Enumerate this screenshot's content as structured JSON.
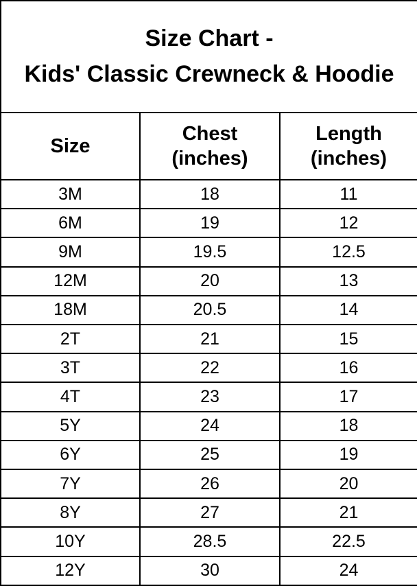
{
  "title": "Size Chart -\nKids' Classic Crewneck & Hoodie",
  "colors": {
    "background": "#ffffff",
    "border": "#000000",
    "text": "#000000"
  },
  "table": {
    "columns": [
      {
        "key": "size",
        "label": "Size"
      },
      {
        "key": "chest",
        "label": "Chest\n(inches)"
      },
      {
        "key": "length",
        "label": "Length\n(inches)"
      }
    ],
    "rows": [
      {
        "size": "3M",
        "chest": "18",
        "length": "11"
      },
      {
        "size": "6M",
        "chest": "19",
        "length": "12"
      },
      {
        "size": "9M",
        "chest": "19.5",
        "length": "12.5"
      },
      {
        "size": "12M",
        "chest": "20",
        "length": "13"
      },
      {
        "size": "18M",
        "chest": "20.5",
        "length": "14"
      },
      {
        "size": "2T",
        "chest": "21",
        "length": "15"
      },
      {
        "size": "3T",
        "chest": "22",
        "length": "16"
      },
      {
        "size": "4T",
        "chest": "23",
        "length": "17"
      },
      {
        "size": "5Y",
        "chest": "24",
        "length": "18"
      },
      {
        "size": "6Y",
        "chest": "25",
        "length": "19"
      },
      {
        "size": "7Y",
        "chest": "26",
        "length": "20"
      },
      {
        "size": "8Y",
        "chest": "27",
        "length": "21"
      },
      {
        "size": "10Y",
        "chest": "28.5",
        "length": "22.5"
      },
      {
        "size": "12Y",
        "chest": "30",
        "length": "24"
      }
    ]
  },
  "chart_data": {
    "type": "table",
    "title": "Size Chart - Kids' Classic Crewneck & Hoodie",
    "columns": [
      "Size",
      "Chest (inches)",
      "Length (inches)"
    ],
    "categories": [
      "3M",
      "6M",
      "9M",
      "12M",
      "18M",
      "2T",
      "3T",
      "4T",
      "5Y",
      "6Y",
      "7Y",
      "8Y",
      "10Y",
      "12Y"
    ],
    "series": [
      {
        "name": "Chest (inches)",
        "values": [
          18,
          19,
          19.5,
          20,
          20.5,
          21,
          22,
          23,
          24,
          25,
          26,
          27,
          28.5,
          30
        ]
      },
      {
        "name": "Length (inches)",
        "values": [
          11,
          12,
          12.5,
          13,
          14,
          15,
          16,
          17,
          18,
          19,
          20,
          21,
          22.5,
          24
        ]
      }
    ],
    "layout": {
      "grid": true,
      "legend": "none"
    }
  }
}
